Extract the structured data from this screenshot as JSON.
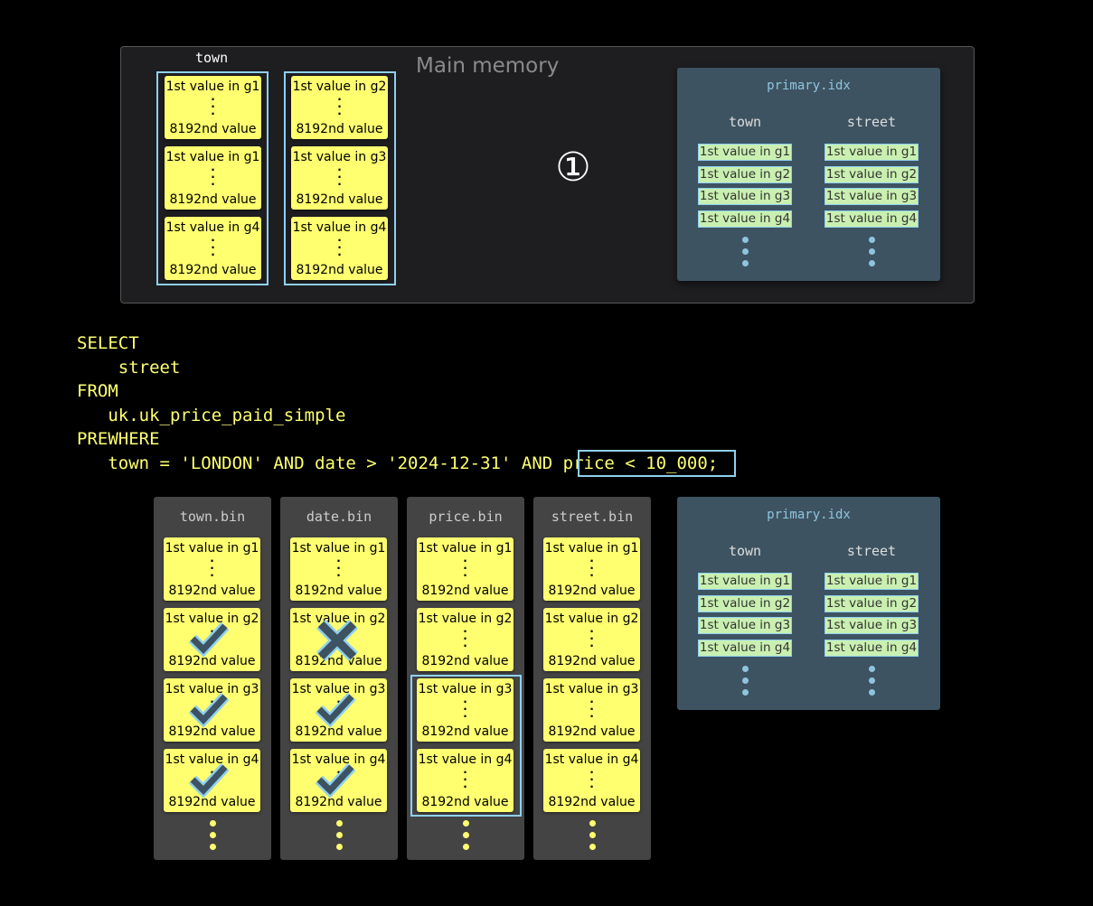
{
  "top": {
    "panel_label": "Main memory",
    "column_label": "town",
    "step": "①",
    "col1": [
      {
        "first": "1st value in g1",
        "last": "8192nd value"
      },
      {
        "first": "1st value in g1",
        "last": "8192nd value"
      },
      {
        "first": "1st value in g4",
        "last": "8192nd value"
      }
    ],
    "col2": [
      {
        "first": "1st value in g2",
        "last": "8192nd value"
      },
      {
        "first": "1st value in g3",
        "last": "8192nd value"
      },
      {
        "first": "1st value in g4",
        "last": "8192nd value"
      }
    ]
  },
  "primary_idx": {
    "title": "primary.idx",
    "columns": [
      "town",
      "street"
    ],
    "values": [
      "1st value in g1",
      "1st value in g2",
      "1st value in g3",
      "1st value in g4"
    ]
  },
  "sql": [
    "SELECT",
    "    street",
    "FROM",
    "   uk.uk_price_paid_simple",
    "PREWHERE",
    "   town = 'LONDON' AND date > '2024-12-31' AND price < 10_000;"
  ],
  "sql_highlight": "price < 10_000",
  "bins": [
    {
      "name": "town.bin",
      "marks": [
        "",
        "check",
        "check",
        "check"
      ]
    },
    {
      "name": "date.bin",
      "marks": [
        "",
        "cross",
        "check",
        "check"
      ]
    },
    {
      "name": "price.bin",
      "marks": [
        "",
        "",
        "",
        ""
      ],
      "highlight": [
        "g3",
        "g4"
      ]
    },
    {
      "name": "street.bin",
      "marks": [
        "",
        "",
        "",
        ""
      ]
    }
  ],
  "granules": [
    {
      "first": "1st value in g1",
      "last": "8192nd value"
    },
    {
      "first": "1st value in g2",
      "last": "8192nd value"
    },
    {
      "first": "1st value in g3",
      "last": "8192nd value"
    },
    {
      "first": "1st value in g4",
      "last": "8192nd value"
    }
  ],
  "colors": {
    "card": "#ffff70",
    "highlight": "#8fd0f0",
    "index_bg": "#3d5361",
    "tag": "#c9f0b0"
  }
}
